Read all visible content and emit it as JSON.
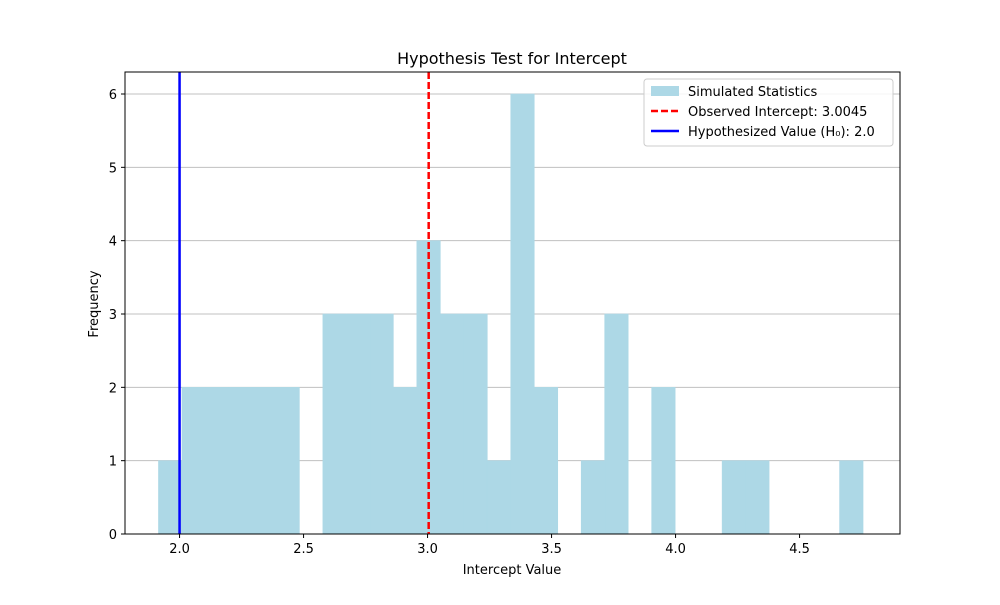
{
  "chart_data": {
    "type": "bar",
    "subtype": "histogram",
    "title": "Hypothesis Test for Intercept",
    "xlabel": "Intercept Value",
    "ylabel": "Frequency",
    "xlim": [
      1.78,
      4.905
    ],
    "ylim": [
      0,
      6.3
    ],
    "xticks": [
      2.0,
      2.5,
      3.0,
      3.5,
      4.0,
      4.5
    ],
    "xtick_labels": [
      "2.0",
      "2.5",
      "3.0",
      "3.5",
      "4.0",
      "4.5"
    ],
    "yticks": [
      0,
      1,
      2,
      3,
      4,
      5,
      6
    ],
    "ytick_labels": [
      "0",
      "1",
      "2",
      "3",
      "4",
      "5",
      "6"
    ],
    "grid": "y-axis horizontal lines",
    "legend_position": "top-right",
    "bin_width": 0.0947,
    "bin_start": 1.915,
    "bins": [
      {
        "x0": 1.915,
        "count": 1
      },
      {
        "x0": 2.0097,
        "count": 2
      },
      {
        "x0": 2.1044,
        "count": 2
      },
      {
        "x0": 2.1991,
        "count": 2
      },
      {
        "x0": 2.2938,
        "count": 2
      },
      {
        "x0": 2.3885,
        "count": 2
      },
      {
        "x0": 2.4832,
        "count": 0
      },
      {
        "x0": 2.5779,
        "count": 3
      },
      {
        "x0": 2.6726,
        "count": 3
      },
      {
        "x0": 2.7673,
        "count": 3
      },
      {
        "x0": 2.862,
        "count": 2
      },
      {
        "x0": 2.9567,
        "count": 4
      },
      {
        "x0": 3.0514,
        "count": 3
      },
      {
        "x0": 3.1461,
        "count": 3
      },
      {
        "x0": 3.2408,
        "count": 1
      },
      {
        "x0": 3.3355,
        "count": 6
      },
      {
        "x0": 3.4302,
        "count": 2
      },
      {
        "x0": 3.5249,
        "count": 0
      },
      {
        "x0": 3.6196,
        "count": 1
      },
      {
        "x0": 3.7143,
        "count": 3
      },
      {
        "x0": 3.809,
        "count": 0
      },
      {
        "x0": 3.9037,
        "count": 2
      },
      {
        "x0": 3.9984,
        "count": 0
      },
      {
        "x0": 4.0931,
        "count": 0
      },
      {
        "x0": 4.1878,
        "count": 1
      },
      {
        "x0": 4.2825,
        "count": 1
      },
      {
        "x0": 4.3772,
        "count": 0
      },
      {
        "x0": 4.4719,
        "count": 0
      },
      {
        "x0": 4.5666,
        "count": 0
      },
      {
        "x0": 4.6613,
        "count": 1
      }
    ],
    "series": [
      {
        "name": "Simulated Statistics",
        "kind": "histogram",
        "color": "#add8e6"
      },
      {
        "name": "Observed Intercept: 3.0045",
        "kind": "vline",
        "x": 3.0045,
        "color": "#ff0000",
        "style": "dashed"
      },
      {
        "name": "Hypothesized Value (H₀): 2.0",
        "kind": "vline",
        "x": 2.0,
        "color": "#0000ff",
        "style": "solid"
      }
    ]
  }
}
